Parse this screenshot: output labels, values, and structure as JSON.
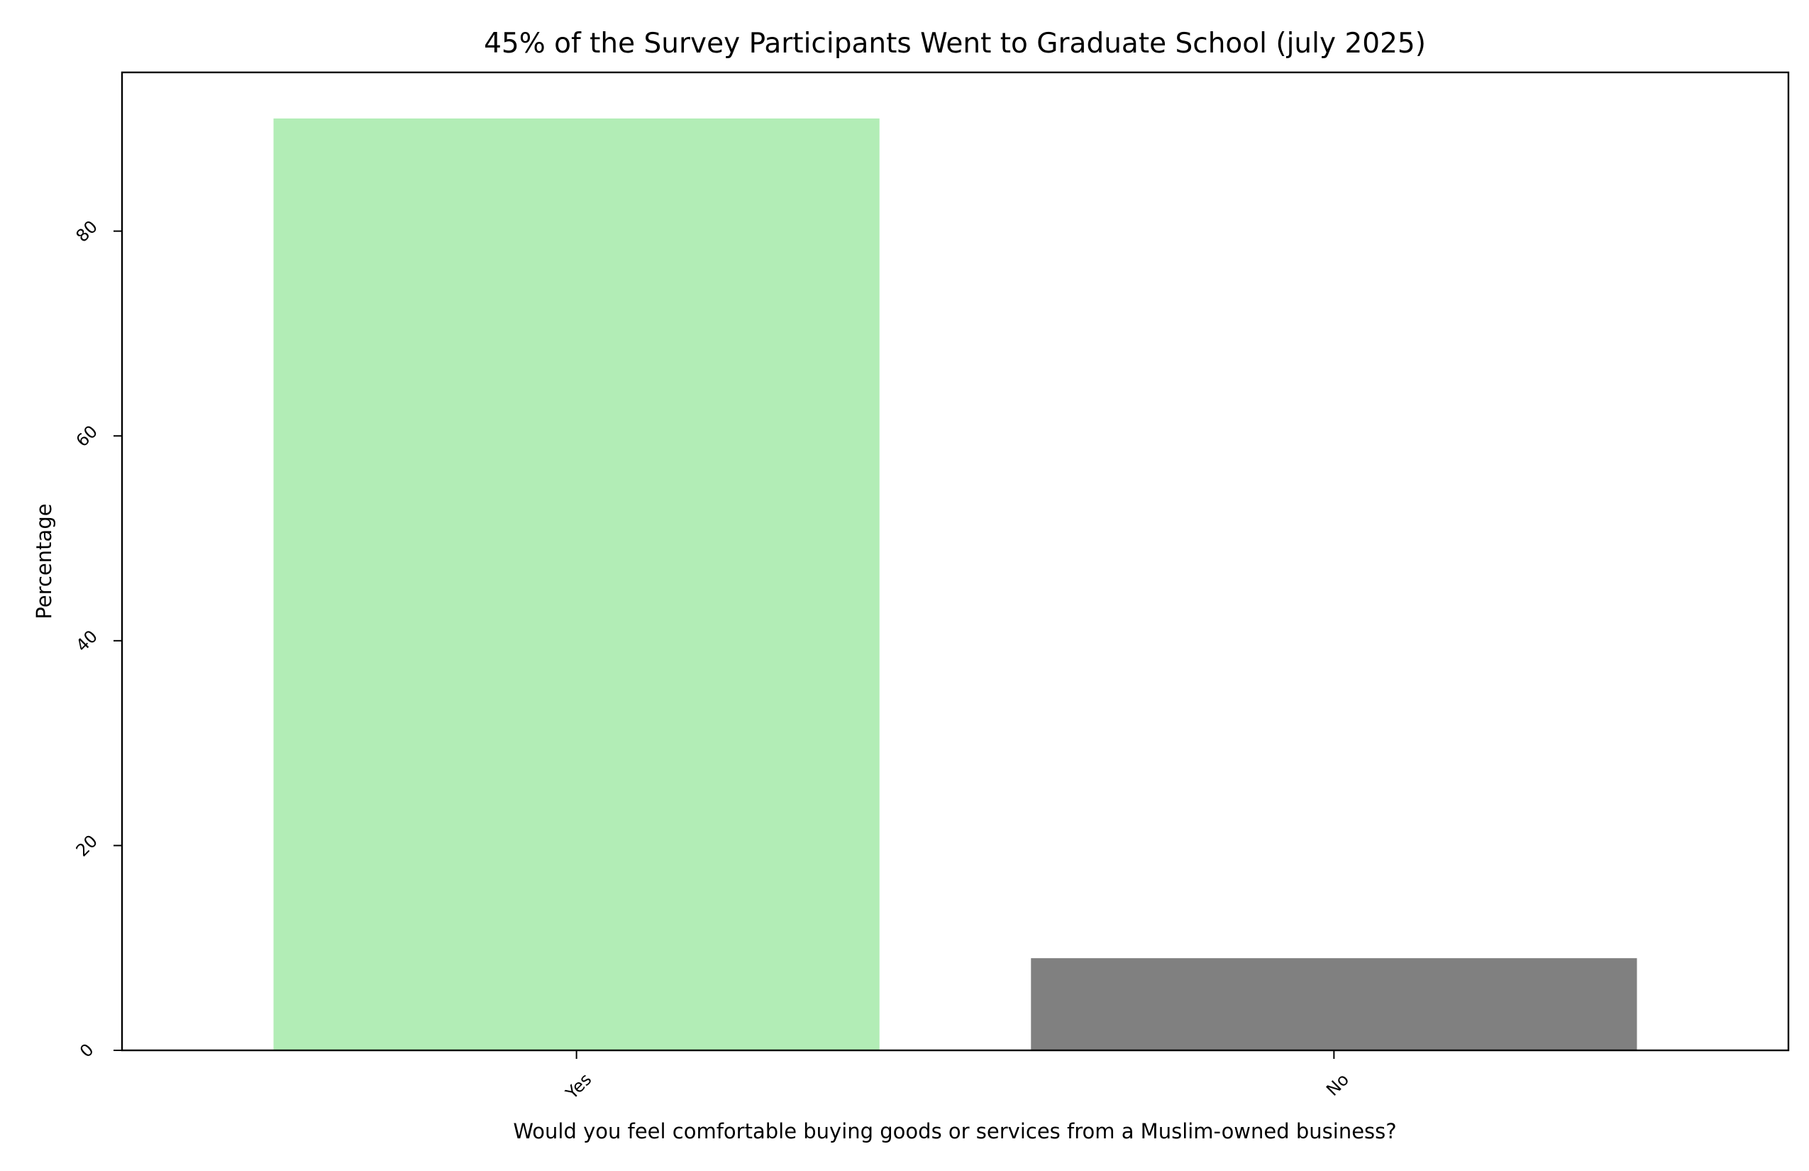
{
  "chart_data": {
    "type": "bar",
    "title": "45% of the Survey Participants Went to Graduate School (july 2025)",
    "xlabel": "Would you feel comfortable buying goods or services from a Muslim-owned business?",
    "ylabel": "Percentage",
    "categories": [
      "Yes",
      "No"
    ],
    "values": [
      91,
      9
    ],
    "colors": [
      "#b2edb6",
      "#808080"
    ],
    "ylim": [
      0,
      95.5
    ],
    "yticks": [
      0,
      20,
      40,
      60,
      80
    ],
    "grid": false,
    "legend": "none"
  }
}
